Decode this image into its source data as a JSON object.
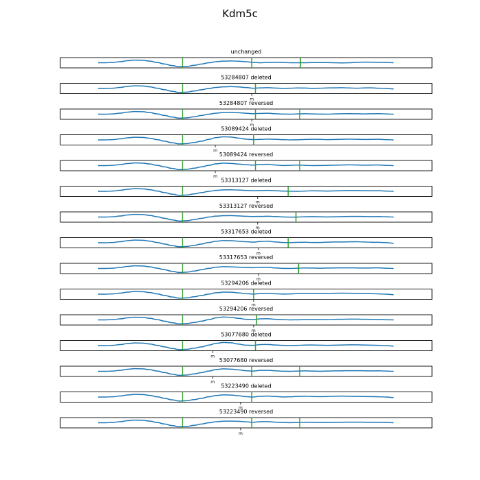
{
  "chart_data": {
    "type": "line",
    "title": "Kdm5c",
    "xlabel": "",
    "ylabel": "",
    "x_range": [
      0,
      1
    ],
    "y_range": [
      -1,
      1
    ],
    "grid": false,
    "legend": "none",
    "colors": {
      "track": "#1f77b4",
      "markers": "#2ca02c",
      "frame": "#000000",
      "background": "#ffffff"
    },
    "panels": [
      {
        "title": "unchanged",
        "markers": [
          0.329,
          0.515,
          0.646
        ],
        "tick": null,
        "tick_label": "",
        "y": [
          0,
          0,
          0.05,
          0.2,
          0.4,
          0.52,
          0.48,
          0.32,
          0.05,
          -0.25,
          -0.55,
          -0.78,
          -0.72,
          -0.5,
          -0.25,
          0,
          0.2,
          0.32,
          0.35,
          0.3,
          0.2,
          0.08,
          0,
          0.05,
          0.08,
          0.05,
          0,
          0,
          0,
          0.03,
          0.05,
          0.03,
          0,
          -0.03,
          0,
          0.08,
          0.12,
          0.1,
          0.08,
          0.05,
          0
        ]
      },
      {
        "title": "53284807 deleted",
        "markers": [
          0.329,
          0.525
        ],
        "tick": 0.515,
        "tick_label": "m",
        "y": [
          0,
          0,
          0.05,
          0.2,
          0.4,
          0.52,
          0.48,
          0.32,
          0.05,
          -0.25,
          -0.55,
          -0.78,
          -0.72,
          -0.5,
          -0.25,
          0,
          0.2,
          0.32,
          0.36,
          0.3,
          0.18,
          0.05,
          0.12,
          0.15,
          0.08,
          0.02,
          0.05,
          0.1,
          0.08,
          0.02,
          0.05,
          0.1,
          0.12,
          0.15,
          0.1,
          0.05,
          0.1,
          0.12,
          0.05,
          0,
          -0.1
        ]
      },
      {
        "title": "53284807 reversed",
        "markers": [
          0.329,
          0.525,
          0.644
        ],
        "tick": 0.515,
        "tick_label": "m",
        "y": [
          0,
          0,
          0.05,
          0.2,
          0.4,
          0.52,
          0.48,
          0.32,
          0.05,
          -0.25,
          -0.55,
          -0.78,
          -0.72,
          -0.5,
          -0.25,
          0,
          0.2,
          0.32,
          0.35,
          0.28,
          0.18,
          0.1,
          0.15,
          0.18,
          0.08,
          0.02,
          0,
          0.05,
          0.08,
          0.05,
          0.02,
          0,
          0.05,
          0.08,
          0.1,
          0.08,
          0.05,
          0.08,
          0.1,
          0.05,
          0
        ]
      },
      {
        "title": "53089424 deleted",
        "markers": [
          0.329,
          0.52
        ],
        "tick": 0.417,
        "tick_label": "m",
        "y": [
          0,
          0,
          0.05,
          0.2,
          0.4,
          0.52,
          0.48,
          0.32,
          0.05,
          -0.25,
          -0.55,
          -0.78,
          -0.72,
          -0.5,
          -0.25,
          0.1,
          0.45,
          0.6,
          0.55,
          0.35,
          0.15,
          0.05,
          0.1,
          0.15,
          0.12,
          0.05,
          0,
          0.02,
          0.08,
          0.12,
          0.1,
          0.05,
          0.08,
          0.12,
          0.15,
          0.12,
          0.08,
          0.1,
          0.12,
          0.05,
          0
        ]
      },
      {
        "title": "53089424 reversed",
        "markers": [
          0.329,
          0.525,
          0.644
        ],
        "tick": 0.417,
        "tick_label": "m",
        "y": [
          0,
          0,
          0.05,
          0.2,
          0.4,
          0.52,
          0.48,
          0.32,
          0.05,
          -0.25,
          -0.55,
          -0.78,
          -0.72,
          -0.5,
          -0.25,
          0.05,
          0.35,
          0.48,
          0.42,
          0.3,
          0.18,
          0.1,
          0.22,
          0.25,
          0.12,
          0.02,
          0.05,
          0.1,
          0.05,
          0,
          0.02,
          0.05,
          0.08,
          0.12,
          0.15,
          0.12,
          0.08,
          0.1,
          0.12,
          0.05,
          0
        ]
      },
      {
        "title": "53313127 deleted",
        "markers": [
          0.329,
          0.613
        ],
        "tick": 0.531,
        "tick_label": "m",
        "y": [
          0,
          0,
          0.05,
          0.2,
          0.4,
          0.52,
          0.48,
          0.32,
          0.05,
          -0.25,
          -0.55,
          -0.78,
          -0.72,
          -0.5,
          -0.25,
          0,
          0.18,
          0.28,
          0.3,
          0.25,
          0.18,
          0.12,
          0.15,
          0.18,
          0.12,
          0.05,
          0.02,
          0,
          0.05,
          0.1,
          0.08,
          0.05,
          0.08,
          0.12,
          0.15,
          0.15,
          0.12,
          0.1,
          0.12,
          0.05,
          0
        ]
      },
      {
        "title": "53313127 reversed",
        "markers": [
          0.329,
          0.634
        ],
        "tick": 0.531,
        "tick_label": "m",
        "y": [
          0,
          0,
          0.05,
          0.2,
          0.4,
          0.52,
          0.48,
          0.32,
          0.05,
          -0.25,
          -0.55,
          -0.78,
          -0.72,
          -0.5,
          -0.25,
          0,
          0.18,
          0.26,
          0.28,
          0.22,
          0.15,
          0.1,
          0.12,
          0.15,
          0.1,
          0.02,
          -0.02,
          0,
          0.05,
          0.08,
          0.05,
          0.02,
          0.05,
          0.08,
          0.12,
          0.12,
          0.1,
          0.08,
          0.1,
          0.05,
          0
        ]
      },
      {
        "title": "53317653 deleted",
        "markers": [
          0.329,
          0.613
        ],
        "tick": 0.533,
        "tick_label": "m",
        "y": [
          0,
          0,
          0.05,
          0.2,
          0.4,
          0.52,
          0.48,
          0.32,
          0.05,
          -0.25,
          -0.55,
          -0.78,
          -0.72,
          -0.5,
          -0.25,
          0.05,
          0.3,
          0.42,
          0.4,
          0.3,
          0.2,
          0.12,
          0.25,
          0.3,
          0.15,
          0.05,
          0.02,
          0.08,
          0.1,
          0.05,
          0.05,
          0.12,
          0.15,
          0.15,
          0.18,
          0.2,
          0.15,
          0.1,
          0.08,
          0.02,
          -0.1
        ]
      },
      {
        "title": "53317653 reversed",
        "markers": [
          0.329,
          0.641
        ],
        "tick": 0.533,
        "tick_label": "m",
        "y": [
          0,
          0,
          0.05,
          0.2,
          0.4,
          0.52,
          0.48,
          0.32,
          0.05,
          -0.25,
          -0.55,
          -0.78,
          -0.72,
          -0.5,
          -0.25,
          0.02,
          0.25,
          0.35,
          0.32,
          0.25,
          0.18,
          0.15,
          0.2,
          0.22,
          0.1,
          0.02,
          0,
          0.05,
          0.1,
          0.08,
          0.05,
          0.08,
          0.1,
          0.12,
          0.12,
          0.1,
          0.08,
          0.1,
          0.12,
          0.05,
          0
        ]
      },
      {
        "title": "53294206 deleted",
        "markers": [
          0.329,
          0.52
        ],
        "tick": 0.52,
        "tick_label": "m",
        "y": [
          0,
          0,
          0.05,
          0.2,
          0.4,
          0.52,
          0.48,
          0.32,
          0.05,
          -0.25,
          -0.55,
          -0.78,
          -0.72,
          -0.5,
          -0.25,
          0.02,
          0.28,
          0.4,
          0.38,
          0.25,
          0.1,
          0.02,
          0.12,
          0.15,
          0.08,
          0.02,
          0.05,
          0.12,
          0.15,
          0.12,
          0.1,
          0.12,
          0.18,
          0.2,
          0.18,
          0.15,
          0.12,
          0.1,
          0.05,
          0,
          -0.1
        ]
      },
      {
        "title": "53294206 reversed",
        "markers": [
          0.329,
          0.528
        ],
        "tick": 0.52,
        "tick_label": "m",
        "y": [
          0,
          0,
          0.05,
          0.2,
          0.4,
          0.52,
          0.48,
          0.32,
          0.05,
          -0.25,
          -0.55,
          -0.78,
          -0.72,
          -0.5,
          -0.25,
          0.05,
          0.4,
          0.55,
          0.5,
          0.3,
          0.12,
          0.08,
          0.2,
          0.22,
          0.12,
          0.05,
          0,
          0.02,
          0.05,
          0.08,
          0.05,
          0.05,
          0.1,
          0.12,
          0.15,
          0.15,
          0.12,
          0.1,
          0.08,
          0.02,
          0
        ]
      },
      {
        "title": "53077680 deleted",
        "markers": [
          0.329,
          0.525
        ],
        "tick": 0.41,
        "tick_label": "m",
        "y": [
          0,
          0,
          0.05,
          0.2,
          0.4,
          0.52,
          0.48,
          0.32,
          0.05,
          -0.25,
          -0.55,
          -0.78,
          -0.72,
          -0.5,
          -0.25,
          0.1,
          0.45,
          0.62,
          0.55,
          0.3,
          0.08,
          0.05,
          0.2,
          0.22,
          0.12,
          0.05,
          0.02,
          0.05,
          0.1,
          0.12,
          0.08,
          0.05,
          0.08,
          0.12,
          0.15,
          0.15,
          0.12,
          0.08,
          0.05,
          0,
          -0.1
        ]
      },
      {
        "title": "53077680 reversed",
        "markers": [
          0.329,
          0.515,
          0.644
        ],
        "tick": 0.41,
        "tick_label": "m",
        "y": [
          0,
          0,
          0.05,
          0.2,
          0.4,
          0.52,
          0.48,
          0.32,
          0.05,
          -0.25,
          -0.55,
          -0.78,
          -0.72,
          -0.5,
          -0.25,
          0.05,
          0.35,
          0.48,
          0.42,
          0.28,
          0.12,
          0.05,
          0.18,
          0.2,
          0.1,
          0.02,
          0,
          0.05,
          0.08,
          0.05,
          0.02,
          0.05,
          0.08,
          0.1,
          0.12,
          0.12,
          0.1,
          0.08,
          0.1,
          0.05,
          0
        ]
      },
      {
        "title": "53223490 deleted",
        "markers": [
          0.329,
          0.515
        ],
        "tick": 0.485,
        "tick_label": "m",
        "y": [
          0,
          0,
          0.05,
          0.2,
          0.4,
          0.52,
          0.48,
          0.32,
          0.05,
          -0.25,
          -0.55,
          -0.78,
          -0.72,
          -0.5,
          -0.25,
          0.05,
          0.3,
          0.42,
          0.38,
          0.25,
          0.08,
          0,
          0.15,
          0.18,
          0.1,
          0.02,
          0.05,
          0.12,
          0.15,
          0.1,
          0.08,
          0.1,
          0.15,
          0.18,
          0.15,
          0.12,
          0.1,
          0.08,
          0.05,
          0,
          -0.1
        ]
      },
      {
        "title": "53223490 reversed",
        "markers": [
          0.329,
          0.515,
          0.644
        ],
        "tick": 0.485,
        "tick_label": "m",
        "y": [
          0,
          0,
          0.05,
          0.2,
          0.4,
          0.52,
          0.48,
          0.32,
          0.05,
          -0.25,
          -0.55,
          -0.78,
          -0.72,
          -0.5,
          -0.25,
          0,
          0.2,
          0.3,
          0.32,
          0.28,
          0.18,
          0.1,
          0.2,
          0.22,
          0.12,
          0.05,
          0.02,
          0.05,
          0.1,
          0.08,
          0.05,
          0.05,
          0.08,
          0.1,
          0.12,
          0.12,
          0.1,
          0.08,
          0.08,
          0.05,
          0
        ]
      }
    ]
  }
}
